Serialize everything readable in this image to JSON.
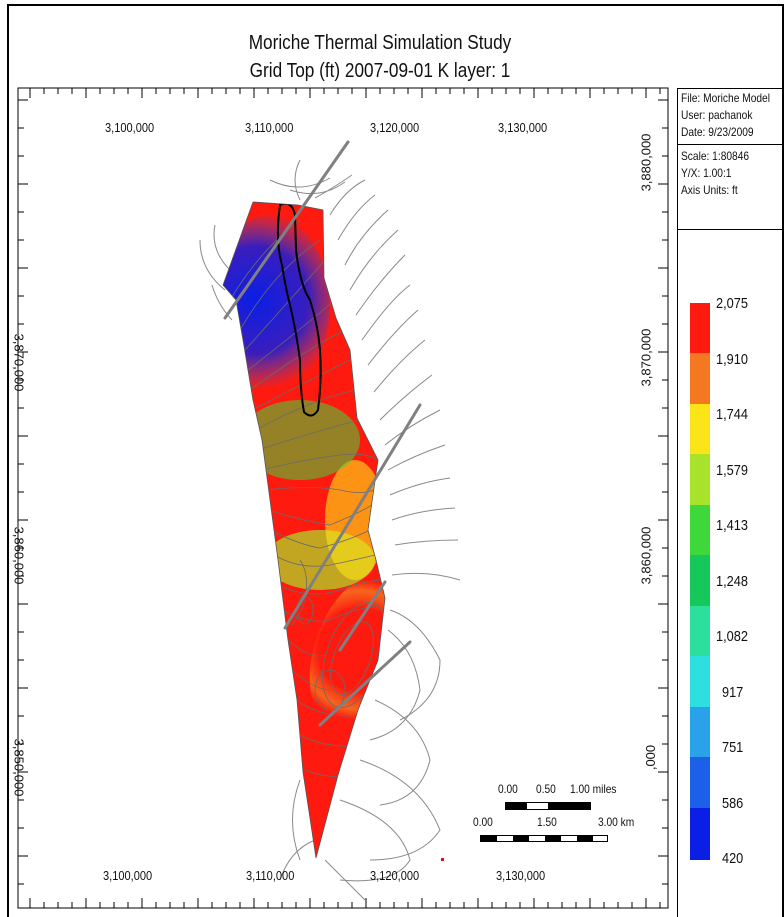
{
  "title": {
    "line1": "Moriche Thermal Simulation Study",
    "line2": "Grid Top (ft) 2007-09-01     K layer: 1"
  },
  "x_axis": {
    "top_labels": [
      "3,100,000",
      "3,110,000",
      "3,120,000",
      "3,130,000"
    ],
    "bottom_labels": [
      "3,100,000",
      "3,110,000",
      "3,120,000",
      "3,130,000"
    ]
  },
  "y_axis": {
    "left_labels": [
      "3,870,000",
      "3,860,000",
      "3,850,000"
    ],
    "right_labels": [
      "3,880,000",
      "3,870,000",
      "3,860,000",
      ",000"
    ]
  },
  "info_box": {
    "file": "File: Moriche Model",
    "user": "User:  pachanok",
    "date": "Date: 9/23/2009",
    "scale": "Scale: 1:80846",
    "yx": "Y/X: 1.00:1",
    "units": "Axis Units: ft"
  },
  "colorbar": {
    "labels": [
      "2,075",
      "1,910",
      "1,744",
      "1,579",
      "1,413",
      "1,248",
      "1,082",
      "917",
      "751",
      "586",
      "420"
    ],
    "colors": [
      "#ff1a10",
      "#f47820",
      "#fbe418",
      "#a8e22a",
      "#3ed83a",
      "#16c85a",
      "#2ddf9c",
      "#2edfe0",
      "#2aa2ea",
      "#1c5fe8",
      "#0a1ee6"
    ]
  },
  "scale_bar": {
    "miles_labels": [
      "0.00",
      "0.50",
      "1.00 miles"
    ],
    "km_labels": [
      "0.00",
      "1.50",
      "3.00 km"
    ]
  }
}
